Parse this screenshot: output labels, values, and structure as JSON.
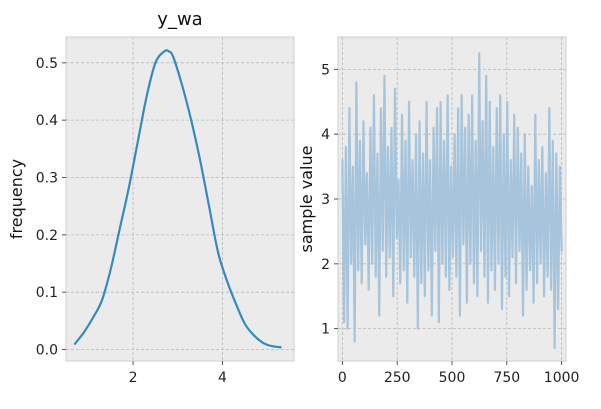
{
  "chart_data": [
    {
      "type": "line",
      "title": "y_wa",
      "xlabel": "",
      "ylabel": "frequency",
      "xlim": [
        0.5,
        5.6
      ],
      "ylim": [
        -0.02,
        0.545
      ],
      "xticks": [
        2,
        4
      ],
      "yticks": [
        0.0,
        0.1,
        0.2,
        0.3,
        0.4,
        0.5
      ],
      "xtick_labels": [
        "2",
        "4"
      ],
      "ytick_labels": [
        "0.0",
        "0.1",
        "0.2",
        "0.3",
        "0.4",
        "0.5"
      ],
      "grid": true,
      "series": [
        {
          "color": "#348abd",
          "x": [
            0.7,
            0.9,
            1.1,
            1.3,
            1.5,
            1.7,
            1.9,
            2.1,
            2.3,
            2.5,
            2.7,
            2.8,
            2.9,
            3.1,
            3.3,
            3.5,
            3.7,
            3.9,
            4.1,
            4.3,
            4.5,
            4.7,
            4.9,
            5.1,
            5.3
          ],
          "y": [
            0.01,
            0.03,
            0.055,
            0.085,
            0.14,
            0.21,
            0.28,
            0.36,
            0.44,
            0.5,
            0.52,
            0.52,
            0.51,
            0.46,
            0.4,
            0.33,
            0.25,
            0.17,
            0.12,
            0.08,
            0.045,
            0.025,
            0.012,
            0.006,
            0.004
          ]
        }
      ]
    },
    {
      "type": "line",
      "title": "",
      "xlabel": "",
      "ylabel": "sample value",
      "xlim": [
        -20,
        1020
      ],
      "ylim": [
        0.5,
        5.5
      ],
      "xticks": [
        0,
        250,
        500,
        750,
        1000
      ],
      "yticks": [
        1,
        2,
        3,
        4,
        5
      ],
      "xtick_labels": [
        "0",
        "250",
        "500",
        "750",
        "1000"
      ],
      "ytick_labels": [
        "1",
        "2",
        "3",
        "4",
        "5"
      ],
      "grid": true,
      "series": [
        {
          "color": "#a6c4dc",
          "x": [
            0,
            8,
            16,
            24,
            32,
            40,
            48,
            56,
            64,
            72,
            80,
            88,
            96,
            104,
            112,
            120,
            128,
            136,
            144,
            152,
            160,
            168,
            176,
            184,
            192,
            200,
            208,
            216,
            224,
            232,
            240,
            248,
            256,
            264,
            272,
            280,
            288,
            296,
            304,
            312,
            320,
            328,
            336,
            344,
            352,
            360,
            368,
            376,
            384,
            392,
            400,
            408,
            416,
            424,
            432,
            440,
            448,
            456,
            464,
            472,
            480,
            488,
            496,
            504,
            512,
            520,
            528,
            536,
            544,
            552,
            560,
            568,
            576,
            584,
            592,
            600,
            608,
            616,
            624,
            632,
            640,
            648,
            656,
            664,
            672,
            680,
            688,
            696,
            704,
            712,
            720,
            728,
            736,
            744,
            752,
            760,
            768,
            776,
            784,
            792,
            800,
            808,
            816,
            824,
            832,
            840,
            848,
            856,
            864,
            872,
            880,
            888,
            896,
            904,
            912,
            920,
            928,
            936,
            944,
            952,
            960,
            968,
            976,
            984,
            992,
            1000
          ],
          "y": [
            3.6,
            1.1,
            3.8,
            1.0,
            4.4,
            2.0,
            3.5,
            0.8,
            4.8,
            1.9,
            3.9,
            1.7,
            4.2,
            2.3,
            3.4,
            1.6,
            4.1,
            2.0,
            4.6,
            1.8,
            3.7,
            1.2,
            4.4,
            2.2,
            4.9,
            1.8,
            3.8,
            2.1,
            4.1,
            1.5,
            4.7,
            2.4,
            3.3,
            1.7,
            4.3,
            1.9,
            3.9,
            1.4,
            4.5,
            2.1,
            3.6,
            1.8,
            4.0,
            1.0,
            4.2,
            1.7,
            3.7,
            1.5,
            4.5,
            1.9,
            3.6,
            1.2,
            4.1,
            2.2,
            4.4,
            1.1,
            4.5,
            2.0,
            3.9,
            1.8,
            4.6,
            1.6,
            3.5,
            2.1,
            4.0,
            1.8,
            4.4,
            1.2,
            4.6,
            2.3,
            4.1,
            1.4,
            4.3,
            2.0,
            4.6,
            1.7,
            3.9,
            1.5,
            5.25,
            2.2,
            4.2,
            1.8,
            4.9,
            1.4,
            4.5,
            1.9,
            3.8,
            1.6,
            4.4,
            2.0,
            4.6,
            1.3,
            4.0,
            1.8,
            4.5,
            1.5,
            3.6,
            2.1,
            4.3,
            1.7,
            4.1,
            2.2,
            3.7,
            1.2,
            4.0,
            1.6,
            3.5,
            1.9,
            3.2,
            1.4,
            4.3,
            1.7,
            3.6,
            2.0,
            3.8,
            1.5,
            3.4,
            1.8,
            4.4,
            1.6,
            3.9,
            0.7,
            3.7,
            1.3,
            3.5,
            2.2
          ]
        }
      ]
    }
  ]
}
